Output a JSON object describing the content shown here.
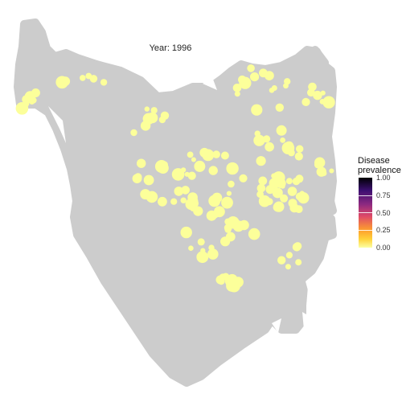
{
  "title": "Year: 1996",
  "legend": {
    "title_line1": "Disease",
    "title_line2": "prevalence",
    "ticks": [
      "1.00",
      "0.75",
      "0.50",
      "0.25",
      "0.00"
    ]
  },
  "colors": {
    "land": "#cccccc",
    "point": "#fcff9a",
    "background": "#ffffff"
  }
}
